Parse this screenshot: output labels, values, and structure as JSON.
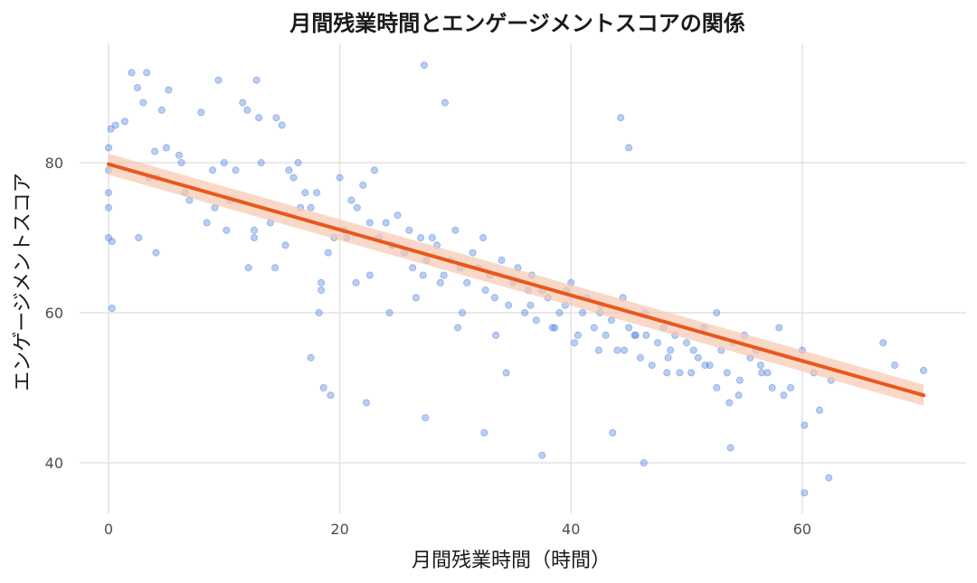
{
  "chart_data": {
    "type": "scatter",
    "title": "月間残業時間とエンゲージメントスコアの関係",
    "xlabel": "月間残業時間（時間）",
    "ylabel": "エンゲージメントスコア",
    "xlim": [
      -2,
      74
    ],
    "ylim": [
      33,
      96
    ],
    "x_ticks": [
      0,
      20,
      40,
      60
    ],
    "y_ticks": [
      40,
      60,
      80
    ],
    "grid": true,
    "colors": {
      "points": "#4a7fe0",
      "trend": "#e8581a",
      "band": "#f6c7b0",
      "grid": "#e2e2e2"
    },
    "trend_line": {
      "x": [
        0,
        70.5
      ],
      "y": [
        79.8,
        49.0
      ],
      "ci_halfwidth": [
        1.4,
        1.4
      ]
    },
    "series": [
      {
        "x": [
          0.2,
          0,
          0,
          0,
          0,
          0,
          0.3,
          0.3,
          0.6,
          1.4,
          2,
          2.5,
          3.0,
          3.3,
          4.0,
          4.2,
          4.6,
          5.0,
          5.2,
          6.1,
          7,
          8,
          9,
          9.5,
          10,
          10.5,
          11,
          11.6,
          12,
          12.6,
          13,
          13.2,
          14,
          14.5,
          15,
          15.6,
          16,
          16.4,
          17,
          17.5,
          18,
          18.4,
          19,
          19.5,
          20,
          20.6,
          21,
          21.5,
          22,
          22.6,
          23,
          23.4,
          24,
          24.5,
          25,
          25.6,
          26,
          26.3,
          27,
          27.5,
          28,
          28.4,
          29,
          29.6,
          30,
          30.4,
          31,
          31.5,
          32,
          32.6,
          33,
          33.4,
          34,
          34.6,
          35,
          35.4,
          36,
          36.6,
          37,
          37.5,
          38,
          38.4,
          39,
          39.5,
          40,
          40.6,
          41,
          41.4,
          42,
          42.6,
          43,
          43.5,
          44,
          44.5,
          45,
          45.6,
          46,
          46.4,
          47,
          47.5,
          48,
          48.6,
          49,
          49.4,
          50,
          50.6,
          51,
          51.5,
          52,
          52.6,
          53,
          53.5,
          54,
          54.6,
          55,
          55.5,
          56,
          56.4,
          57,
          58,
          59,
          60,
          61,
          62.5,
          67,
          68,
          70.5,
          2.6,
          4.1,
          6.3,
          8.5,
          10.2,
          12.6,
          14.4,
          16.6,
          18.2,
          20.4,
          22.6,
          24.5,
          26.6,
          28.7,
          30.6,
          32.4,
          34.4,
          36.5,
          38.6,
          40.3,
          42.5,
          44.6,
          46.5,
          48.4,
          50.4,
          52.6,
          54.5,
          56.5,
          58.4,
          60.2,
          61.5,
          3.5,
          9.2,
          15.3,
          21.4,
          27.2,
          33.5,
          39.6,
          45.5,
          51.6,
          57.4,
          6.6,
          12.1,
          18.4,
          24.3,
          30.2,
          36.3,
          42.4,
          48.3,
          53.7,
          44.3,
          45,
          27.3,
          29.1,
          12.8,
          18.6,
          22.3,
          37.5,
          46.3,
          60.2,
          53.8,
          62.3,
          43.6,
          32.5,
          27.4,
          17.5,
          19.2
        ],
        "y": [
          84.5,
          82,
          79,
          76,
          74,
          70,
          69.5,
          60.6,
          85,
          85.5,
          92,
          90,
          88,
          92,
          81.5,
          78,
          87,
          82,
          89.7,
          81,
          75,
          86.7,
          79,
          91,
          80,
          75,
          79,
          88,
          87,
          71,
          86,
          80,
          72,
          86,
          85,
          79,
          78,
          80,
          76,
          74,
          76,
          63,
          68,
          70,
          78,
          70,
          75,
          74,
          77,
          72,
          79,
          70,
          72,
          69,
          73,
          68,
          71,
          66,
          70,
          67,
          70,
          69,
          65,
          67,
          71,
          66,
          64,
          68,
          66,
          63,
          65,
          62,
          67,
          61,
          64,
          66,
          60,
          65,
          59,
          63,
          62,
          58,
          60,
          61,
          64,
          57,
          60,
          62,
          58,
          61,
          57,
          59,
          55,
          62,
          58,
          57,
          54,
          60,
          53,
          56,
          58,
          55,
          57,
          52,
          56,
          55,
          54,
          58,
          53,
          60,
          55,
          52,
          56,
          51,
          57,
          54,
          55,
          53,
          52,
          58,
          50,
          55,
          52,
          51,
          56,
          53,
          52.3,
          70,
          68,
          80,
          72,
          71,
          70,
          66,
          74,
          60,
          71,
          65,
          69,
          62,
          64,
          60,
          70,
          52,
          61,
          58,
          56,
          60,
          55,
          57,
          54,
          52,
          50,
          49,
          52,
          49,
          45,
          47,
          78,
          74,
          69,
          64,
          65,
          57,
          63,
          57,
          53,
          50,
          76,
          66,
          64,
          60,
          58,
          63,
          55,
          52,
          48,
          86,
          82,
          93,
          88,
          91,
          50,
          48,
          41,
          40,
          36,
          42,
          38,
          44,
          44,
          46,
          54,
          49
        ]
      }
    ]
  }
}
